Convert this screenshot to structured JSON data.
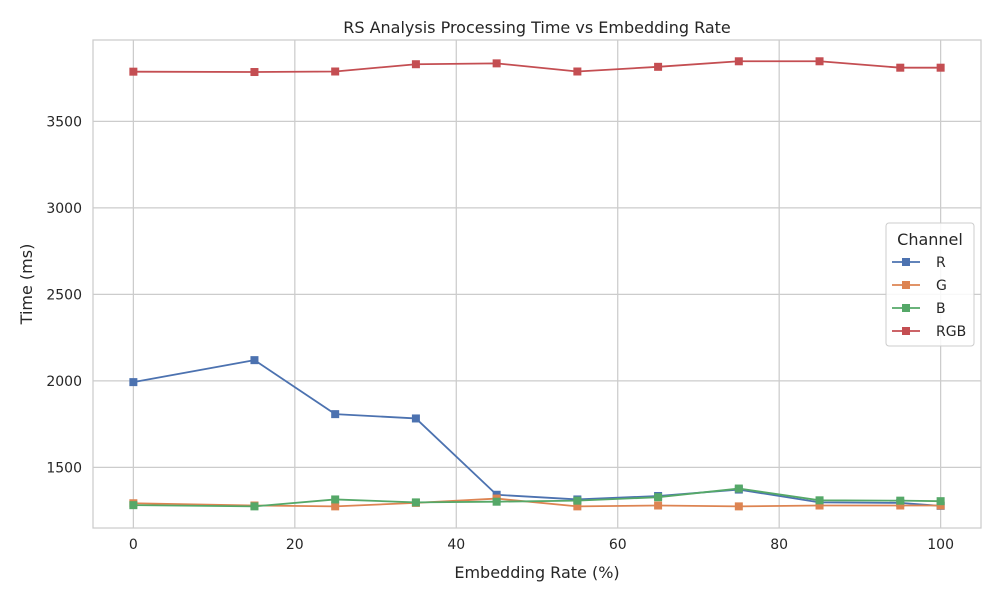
{
  "chart_data": {
    "type": "line",
    "title": "RS Analysis Processing Time vs Embedding Rate",
    "xlabel": "Embedding Rate (%)",
    "ylabel": "Time (ms)",
    "xlim": [
      -5,
      105
    ],
    "ylim": [
      1150,
      3970
    ],
    "xticks": [
      0,
      20,
      40,
      60,
      80,
      100
    ],
    "yticks": [
      1500,
      2000,
      2500,
      3000,
      3500
    ],
    "grid": true,
    "legend": {
      "title": "Channel",
      "placement": "center-right"
    },
    "marker": "square",
    "x": [
      0,
      15,
      25,
      35,
      45,
      55,
      65,
      75,
      85,
      95,
      100
    ],
    "series": [
      {
        "name": "R",
        "color": "#4c72b0",
        "values": [
          1993,
          2120,
          1808,
          1783,
          1342,
          1315,
          1335,
          1372,
          1298,
          1295,
          1278
        ]
      },
      {
        "name": "G",
        "color": "#dd8452",
        "values": [
          1293,
          1280,
          1275,
          1295,
          1320,
          1275,
          1280,
          1275,
          1280,
          1280,
          1280
        ]
      },
      {
        "name": "B",
        "color": "#55a868",
        "values": [
          1282,
          1275,
          1315,
          1298,
          1302,
          1308,
          1328,
          1378,
          1310,
          1308,
          1305
        ]
      },
      {
        "name": "RGB",
        "color": "#c44e52",
        "values": [
          3787,
          3785,
          3788,
          3830,
          3835,
          3788,
          3815,
          3847,
          3847,
          3810,
          3810
        ]
      }
    ]
  }
}
